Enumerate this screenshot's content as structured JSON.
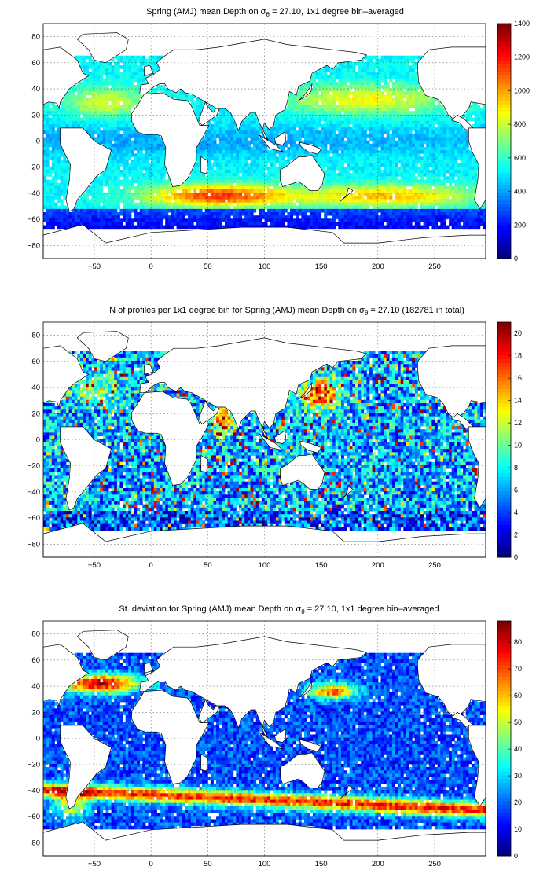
{
  "figure": {
    "panels": [
      {
        "id": "mean-depth",
        "title_parts": [
          "Spring (AMJ) mean Depth on σ",
          "θ",
          " = 27.10, 1x1 degree bin–averaged"
        ],
        "colorbar": {
          "min": 0,
          "max": 1400,
          "ticks": [
            0,
            200,
            400,
            600,
            800,
            1000,
            1200,
            1400
          ]
        }
      },
      {
        "id": "profile-count",
        "title_parts": [
          "N of profiles per 1x1 degree bin for Spring (AMJ) mean Depth on σ",
          "θ",
          " = 27.10 (182781 in total)"
        ],
        "colorbar": {
          "min": 0,
          "max": 21,
          "ticks": [
            0,
            2,
            4,
            6,
            8,
            10,
            12,
            14,
            16,
            18,
            20
          ]
        }
      },
      {
        "id": "std-deviation",
        "title_parts": [
          "St. deviation for Spring (AMJ) mean Depth on σ",
          "θ",
          " = 27.10, 1x1 degree bin–averaged"
        ],
        "colorbar": {
          "min": 0,
          "max": 88,
          "ticks": [
            0,
            10,
            20,
            30,
            40,
            50,
            60,
            70,
            80
          ]
        }
      }
    ],
    "x_ticks": [
      -50,
      0,
      50,
      100,
      150,
      200,
      250
    ],
    "y_ticks": [
      80,
      60,
      40,
      20,
      0,
      -20,
      -40,
      -60,
      -80
    ],
    "colormap": "jet"
  },
  "chart_data": [
    {
      "type": "heatmap",
      "title": "Spring (AMJ) mean Depth on σθ = 27.10, 1x1 degree bin–averaged",
      "xlim": [
        -95,
        295
      ],
      "ylim": [
        -90,
        90
      ],
      "x_ticks": [
        -50,
        0,
        50,
        100,
        150,
        200,
        250
      ],
      "y_ticks": [
        -80,
        -60,
        -40,
        -20,
        0,
        20,
        40,
        60,
        80
      ],
      "colorbar": {
        "range": [
          0,
          1400
        ],
        "colormap": "jet"
      },
      "grid": true,
      "approx_values": [
        {
          "region": "North Atlantic subtropics (~30N)",
          "value": 750
        },
        {
          "region": "South Atlantic / Indian subtropics",
          "value": 600
        },
        {
          "region": "Southern Indian Ocean (~40S, 20-120E)",
          "value": 1100
        },
        {
          "region": "South Pacific (~40S, 150-250E)",
          "value": 950
        },
        {
          "region": "North Pacific (~30N, 140-240E)",
          "value": 950
        },
        {
          "region": "Equatorial band",
          "value": 500
        },
        {
          "region": "Southern Ocean (~60S)",
          "value": 150
        }
      ]
    },
    {
      "type": "heatmap",
      "title": "N of profiles per 1x1 degree bin for Spring (AMJ) mean Depth on σθ = 27.10 (182781 in total)",
      "xlim": [
        -95,
        295
      ],
      "ylim": [
        -90,
        90
      ],
      "x_ticks": [
        -50,
        0,
        50,
        100,
        150,
        200,
        250
      ],
      "y_ticks": [
        -80,
        -60,
        -40,
        -20,
        0,
        20,
        40,
        60,
        80
      ],
      "colorbar": {
        "range": [
          0,
          21
        ],
        "colormap": "jet"
      },
      "grid": true,
      "approx_values": [
        {
          "region": "Open ocean typical",
          "value": 7
        },
        {
          "region": "Kuroshio / NW Pacific (~35N, 140E)",
          "value": 20
        },
        {
          "region": "Arabian Sea (~15N, 62E)",
          "value": 18
        },
        {
          "region": "Gulf Stream / NW Atlantic",
          "value": 13
        },
        {
          "region": "Southern Ocean",
          "value": 5
        }
      ]
    },
    {
      "type": "heatmap",
      "title": "St. deviation for Spring (AMJ) mean Depth on σθ = 27.10, 1x1 degree bin–averaged",
      "xlim": [
        -95,
        295
      ],
      "ylim": [
        -90,
        90
      ],
      "x_ticks": [
        -50,
        0,
        50,
        100,
        150,
        200,
        250
      ],
      "y_ticks": [
        -80,
        -60,
        -40,
        -20,
        0,
        20,
        40,
        60,
        80
      ],
      "colorbar": {
        "range": [
          0,
          88
        ],
        "colormap": "jet"
      },
      "grid": true,
      "approx_values": [
        {
          "region": "Open ocean typical",
          "value": 18
        },
        {
          "region": "Gulf Stream (~40N, 300E)",
          "value": 80
        },
        {
          "region": "Kuroshio Extension (~35N, 150-170E)",
          "value": 75
        },
        {
          "region": "Antarctic Circumpolar Current (~45-55S)",
          "value": 75
        },
        {
          "region": "Agulhas (~40S, 20E)",
          "value": 80
        }
      ]
    }
  ]
}
